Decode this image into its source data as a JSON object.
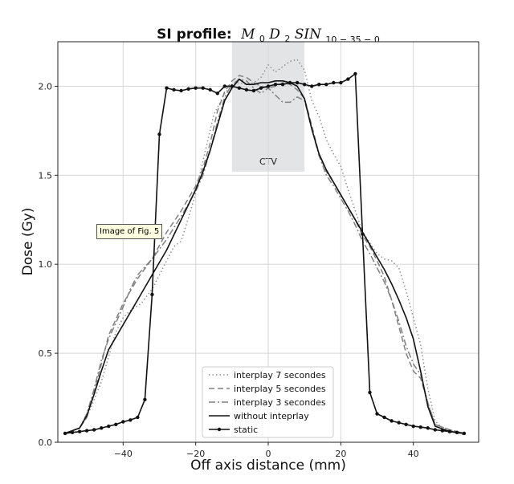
{
  "tooltip": "Image of Fig. 5",
  "chart_data": {
    "type": "line",
    "title_prefix": "SI profile:",
    "title_math": {
      "M": "M",
      "M_sub": "0",
      "D": "D",
      "D_sub": "2",
      "SIN": "SIN",
      "SIN_sub": "10 − 35 − 0"
    },
    "xlabel": "Off axis distance (mm)",
    "ylabel": "Dose (Gy)",
    "xlim": [
      -58,
      58
    ],
    "ylim": [
      0.0,
      2.25
    ],
    "xticks": [
      -40,
      -20,
      0,
      20,
      40
    ],
    "yticks": [
      0.0,
      0.5,
      1.0,
      1.5,
      2.0
    ],
    "ytick_labels": [
      "0.0",
      "0.5",
      "1.0",
      "1.5",
      "2.0"
    ],
    "grid": true,
    "legend_position": "lower center",
    "ctv_region": {
      "label": "CTV",
      "x": [
        -10,
        10
      ],
      "y": [
        1.52,
        2.25
      ],
      "color": "#e3e4e6"
    },
    "series": [
      {
        "name": "interplay 7 secondes",
        "style": "dotted",
        "color": "#909090",
        "points": [
          [
            -56,
            0.05
          ],
          [
            -52,
            0.08
          ],
          [
            -50,
            0.14
          ],
          [
            -48,
            0.24
          ],
          [
            -46,
            0.34
          ],
          [
            -44,
            0.48
          ],
          [
            -42,
            0.62
          ],
          [
            -40,
            0.7
          ],
          [
            -38,
            0.74
          ],
          [
            -35,
            0.78
          ],
          [
            -32,
            0.86
          ],
          [
            -30,
            0.94
          ],
          [
            -28,
            1.02
          ],
          [
            -26,
            1.1
          ],
          [
            -24,
            1.13
          ],
          [
            -22,
            1.26
          ],
          [
            -20,
            1.4
          ],
          [
            -18,
            1.58
          ],
          [
            -15,
            1.84
          ],
          [
            -12,
            1.96
          ],
          [
            -10,
            2.01
          ],
          [
            -8,
            2.02
          ],
          [
            -6,
            2.01
          ],
          [
            -4,
            2.02
          ],
          [
            -2,
            2.05
          ],
          [
            0,
            2.12
          ],
          [
            2,
            2.08
          ],
          [
            4,
            2.11
          ],
          [
            6,
            2.14
          ],
          [
            8,
            2.15
          ],
          [
            10,
            2.09
          ],
          [
            12,
            1.92
          ],
          [
            14,
            1.83
          ],
          [
            16,
            1.7
          ],
          [
            18,
            1.62
          ],
          [
            20,
            1.55
          ],
          [
            22,
            1.42
          ],
          [
            24,
            1.3
          ],
          [
            26,
            1.18
          ],
          [
            28,
            1.12
          ],
          [
            30,
            1.06
          ],
          [
            32,
            1.03
          ],
          [
            34,
            1.02
          ],
          [
            36,
            0.98
          ],
          [
            38,
            0.85
          ],
          [
            40,
            0.7
          ],
          [
            42,
            0.55
          ],
          [
            44,
            0.3
          ],
          [
            46,
            0.12
          ],
          [
            48,
            0.08
          ],
          [
            54,
            0.04
          ]
        ]
      },
      {
        "name": "interplay 5 secondes",
        "style": "dashed",
        "color": "#808080",
        "points": [
          [
            -56,
            0.05
          ],
          [
            -52,
            0.08
          ],
          [
            -50,
            0.14
          ],
          [
            -48,
            0.28
          ],
          [
            -46,
            0.44
          ],
          [
            -44,
            0.6
          ],
          [
            -40,
            0.78
          ],
          [
            -36,
            0.92
          ],
          [
            -32,
            1.03
          ],
          [
            -28,
            1.18
          ],
          [
            -24,
            1.3
          ],
          [
            -20,
            1.44
          ],
          [
            -18,
            1.54
          ],
          [
            -16,
            1.68
          ],
          [
            -14,
            1.86
          ],
          [
            -12,
            1.97
          ],
          [
            -10,
            2.03
          ],
          [
            -8,
            2.06
          ],
          [
            -6,
            2.05
          ],
          [
            -4,
            2.02
          ],
          [
            -2,
            2.0
          ],
          [
            0,
            1.99
          ],
          [
            2,
            2.0
          ],
          [
            4,
            2.02
          ],
          [
            6,
            2.01
          ],
          [
            8,
            1.98
          ],
          [
            10,
            1.93
          ],
          [
            12,
            1.78
          ],
          [
            14,
            1.62
          ],
          [
            16,
            1.52
          ],
          [
            18,
            1.46
          ],
          [
            20,
            1.39
          ],
          [
            22,
            1.32
          ],
          [
            24,
            1.25
          ],
          [
            26,
            1.16
          ],
          [
            28,
            1.1
          ],
          [
            30,
            1.02
          ],
          [
            32,
            0.93
          ],
          [
            34,
            0.8
          ],
          [
            36,
            0.65
          ],
          [
            38,
            0.5
          ],
          [
            40,
            0.4
          ],
          [
            42,
            0.36
          ],
          [
            44,
            0.22
          ],
          [
            46,
            0.1
          ],
          [
            50,
            0.07
          ],
          [
            54,
            0.05
          ]
        ]
      },
      {
        "name": "interplay 3 secondes",
        "style": "dashdot",
        "color": "#808080",
        "points": [
          [
            -56,
            0.05
          ],
          [
            -52,
            0.08
          ],
          [
            -50,
            0.16
          ],
          [
            -48,
            0.3
          ],
          [
            -46,
            0.46
          ],
          [
            -44,
            0.58
          ],
          [
            -40,
            0.76
          ],
          [
            -38,
            0.86
          ],
          [
            -36,
            0.94
          ],
          [
            -32,
            1.03
          ],
          [
            -28,
            1.14
          ],
          [
            -24,
            1.27
          ],
          [
            -20,
            1.41
          ],
          [
            -18,
            1.5
          ],
          [
            -16,
            1.64
          ],
          [
            -14,
            1.8
          ],
          [
            -12,
            1.94
          ],
          [
            -10,
            2.01
          ],
          [
            -8,
            2.04
          ],
          [
            -6,
            2.03
          ],
          [
            -4,
            1.99
          ],
          [
            -2,
            1.96
          ],
          [
            0,
            1.99
          ],
          [
            2,
            1.95
          ],
          [
            4,
            1.91
          ],
          [
            6,
            1.91
          ],
          [
            8,
            1.94
          ],
          [
            10,
            1.92
          ],
          [
            12,
            1.76
          ],
          [
            14,
            1.61
          ],
          [
            16,
            1.5
          ],
          [
            18,
            1.44
          ],
          [
            20,
            1.37
          ],
          [
            22,
            1.3
          ],
          [
            24,
            1.22
          ],
          [
            26,
            1.13
          ],
          [
            28,
            1.06
          ],
          [
            30,
            0.98
          ],
          [
            32,
            0.9
          ],
          [
            34,
            0.8
          ],
          [
            36,
            0.68
          ],
          [
            38,
            0.54
          ],
          [
            40,
            0.44
          ],
          [
            42,
            0.38
          ],
          [
            44,
            0.22
          ],
          [
            46,
            0.1
          ],
          [
            50,
            0.07
          ],
          [
            54,
            0.05
          ]
        ]
      },
      {
        "name": "without inteprlay",
        "style": "solid",
        "color": "#111111",
        "points": [
          [
            -56,
            0.05
          ],
          [
            -52,
            0.08
          ],
          [
            -50,
            0.15
          ],
          [
            -48,
            0.27
          ],
          [
            -46,
            0.4
          ],
          [
            -44,
            0.52
          ],
          [
            -40,
            0.66
          ],
          [
            -36,
            0.8
          ],
          [
            -32,
            0.94
          ],
          [
            -28,
            1.08
          ],
          [
            -24,
            1.25
          ],
          [
            -20,
            1.42
          ],
          [
            -18,
            1.52
          ],
          [
            -16,
            1.64
          ],
          [
            -14,
            1.78
          ],
          [
            -12,
            1.92
          ],
          [
            -10,
            1.99
          ],
          [
            -8,
            2.04
          ],
          [
            -6,
            2.01
          ],
          [
            -4,
            2.01
          ],
          [
            -2,
            2.02
          ],
          [
            0,
            2.02
          ],
          [
            2,
            2.03
          ],
          [
            4,
            2.03
          ],
          [
            6,
            2.02
          ],
          [
            8,
            2.0
          ],
          [
            10,
            1.93
          ],
          [
            12,
            1.76
          ],
          [
            14,
            1.62
          ],
          [
            16,
            1.53
          ],
          [
            18,
            1.46
          ],
          [
            20,
            1.39
          ],
          [
            22,
            1.32
          ],
          [
            24,
            1.25
          ],
          [
            26,
            1.18
          ],
          [
            28,
            1.11
          ],
          [
            30,
            1.04
          ],
          [
            32,
            0.97
          ],
          [
            34,
            0.89
          ],
          [
            36,
            0.8
          ],
          [
            38,
            0.7
          ],
          [
            40,
            0.58
          ],
          [
            42,
            0.4
          ],
          [
            44,
            0.2
          ],
          [
            46,
            0.09
          ],
          [
            50,
            0.06
          ],
          [
            54,
            0.05
          ]
        ]
      },
      {
        "name": "static",
        "style": "solid-marker",
        "color": "#111111",
        "points": [
          [
            -56,
            0.05
          ],
          [
            -54,
            0.055
          ],
          [
            -52,
            0.06
          ],
          [
            -50,
            0.065
          ],
          [
            -48,
            0.07
          ],
          [
            -46,
            0.08
          ],
          [
            -44,
            0.09
          ],
          [
            -42,
            0.1
          ],
          [
            -40,
            0.115
          ],
          [
            -38,
            0.125
          ],
          [
            -36,
            0.14
          ],
          [
            -34,
            0.24
          ],
          [
            -32,
            0.83
          ],
          [
            -30,
            1.73
          ],
          [
            -28,
            1.99
          ],
          [
            -26,
            1.98
          ],
          [
            -24,
            1.975
          ],
          [
            -22,
            1.985
          ],
          [
            -20,
            1.99
          ],
          [
            -18,
            1.99
          ],
          [
            -16,
            1.98
          ],
          [
            -14,
            1.96
          ],
          [
            -12,
            2.0
          ],
          [
            -10,
            2.0
          ],
          [
            -8,
            1.99
          ],
          [
            -6,
            1.98
          ],
          [
            -4,
            1.975
          ],
          [
            -2,
            1.99
          ],
          [
            0,
            2.0
          ],
          [
            2,
            2.01
          ],
          [
            4,
            2.01
          ],
          [
            6,
            2.02
          ],
          [
            8,
            2.02
          ],
          [
            10,
            2.01
          ],
          [
            12,
            2.0
          ],
          [
            14,
            2.01
          ],
          [
            16,
            2.01
          ],
          [
            18,
            2.02
          ],
          [
            20,
            2.02
          ],
          [
            22,
            2.04
          ],
          [
            24,
            2.07
          ],
          [
            26,
            1.17
          ],
          [
            28,
            0.28
          ],
          [
            30,
            0.16
          ],
          [
            32,
            0.14
          ],
          [
            34,
            0.12
          ],
          [
            36,
            0.11
          ],
          [
            38,
            0.1
          ],
          [
            40,
            0.09
          ],
          [
            42,
            0.085
          ],
          [
            44,
            0.08
          ],
          [
            46,
            0.07
          ],
          [
            48,
            0.065
          ],
          [
            50,
            0.06
          ],
          [
            52,
            0.055
          ],
          [
            54,
            0.05
          ]
        ]
      }
    ]
  }
}
